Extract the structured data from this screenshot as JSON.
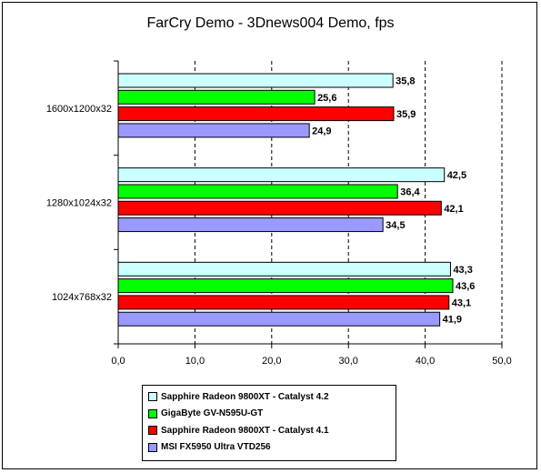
{
  "chart_data": {
    "type": "bar",
    "orientation": "horizontal",
    "title": "FarCry Demo - 3Dnews004 Demo, fps",
    "categories": [
      "1600x1200x32",
      "1280x1024x32",
      "1024x768x32"
    ],
    "series": [
      {
        "name": "Sapphire Radeon 9800XT - Catalyst 4.2",
        "color": "#ccffff",
        "values": [
          35.8,
          42.5,
          43.3
        ],
        "labels": [
          "35,8",
          "42,5",
          "43,3"
        ]
      },
      {
        "name": "GigaByte GV-N595U-GT",
        "color": "#00ff00",
        "values": [
          25.6,
          36.4,
          43.6
        ],
        "labels": [
          "25,6",
          "36,4",
          "43,6"
        ]
      },
      {
        "name": "Sapphire Radeon 9800XT - Catalyst 4.1",
        "color": "#ff0000",
        "values": [
          35.9,
          42.1,
          43.1
        ],
        "labels": [
          "35,9",
          "42,1",
          "43,1"
        ]
      },
      {
        "name": "MSI FX5950 Ultra VTD256",
        "color": "#9999ff",
        "values": [
          24.9,
          34.5,
          41.9
        ],
        "labels": [
          "24,9",
          "34,5",
          "41,9"
        ]
      }
    ],
    "xlim": [
      0,
      50
    ],
    "xticks": [
      0,
      10,
      20,
      30,
      40,
      50
    ],
    "xtick_labels": [
      "0,0",
      "10,0",
      "20,0",
      "30,0",
      "40,0",
      "50,0"
    ],
    "grid": "vertical dashed",
    "legend_position": "bottom"
  }
}
